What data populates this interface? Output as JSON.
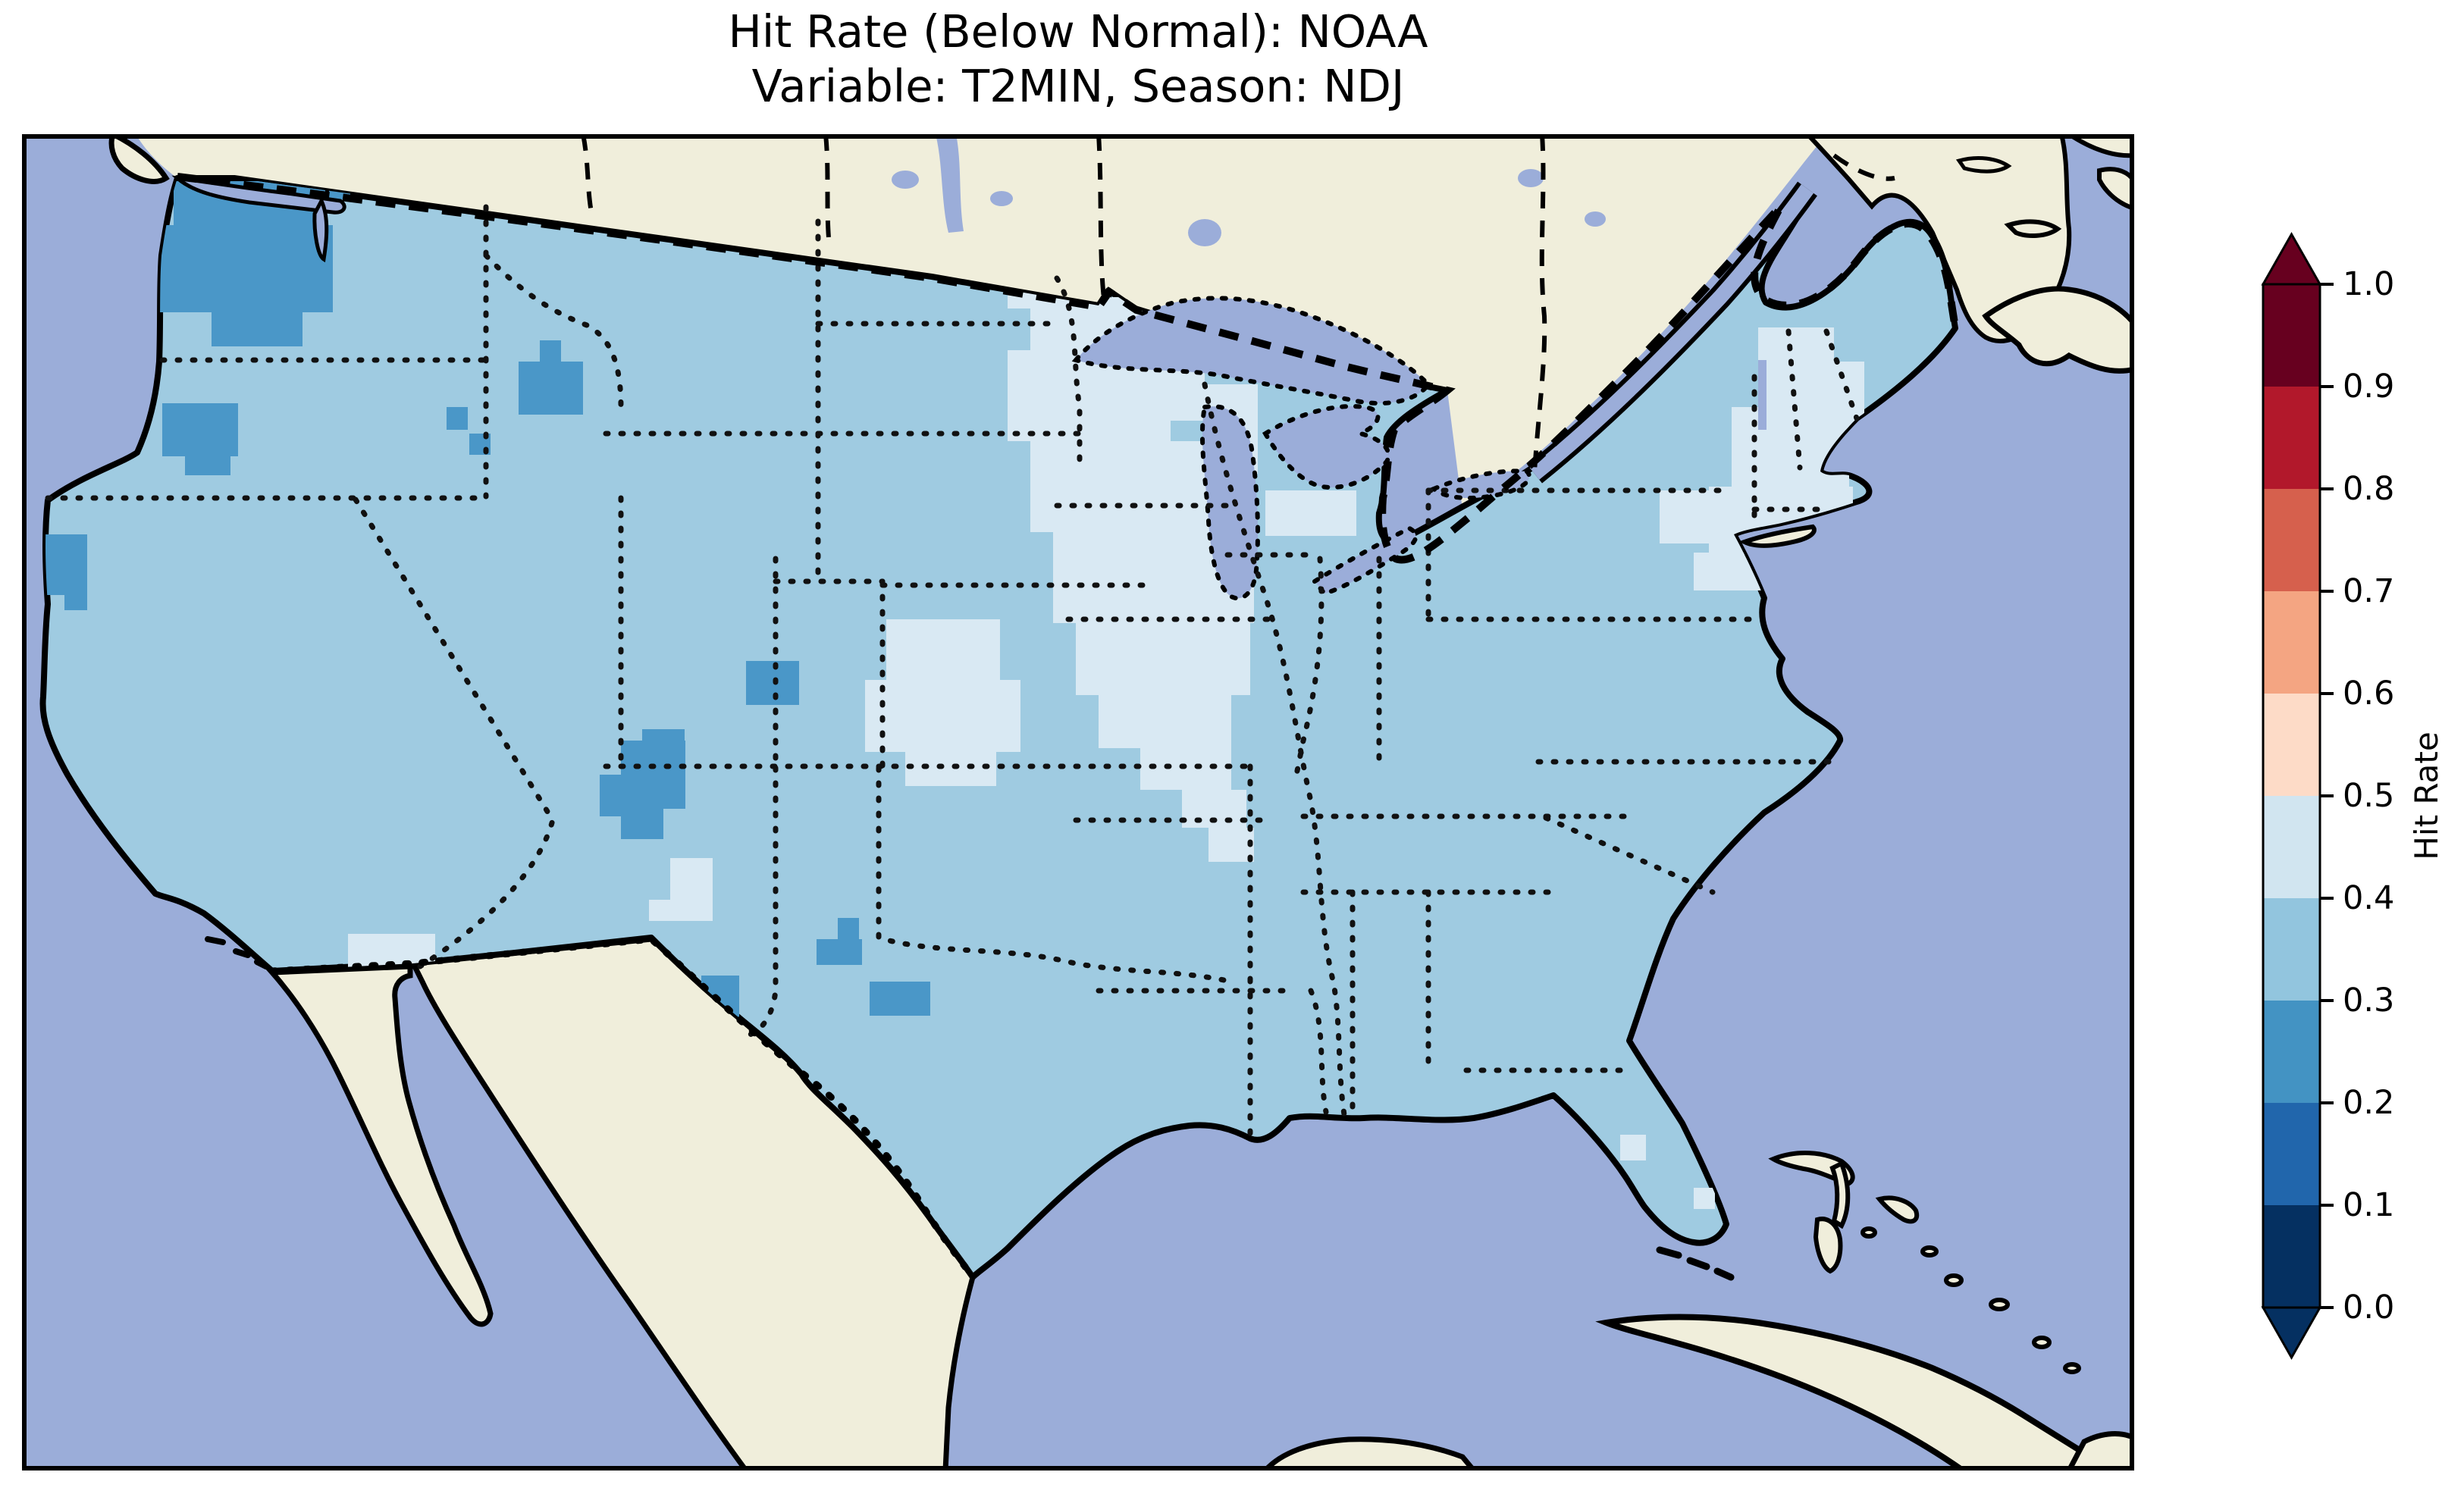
{
  "figure": {
    "title": "Hit Rate (Below Normal): NOAA",
    "subtitle": "Variable: T2MIN, Season: NDJ",
    "background_color": "#ffffff"
  },
  "chart_data": {
    "type": "heatmap",
    "title": "Hit Rate (Below Normal): NOAA",
    "subtitle": "Variable: T2MIN, Season: NDJ",
    "metric": "Hit Rate (Below Normal)",
    "dataset": "NOAA",
    "variable": "T2MIN",
    "season": "NDJ",
    "legend_position": "right",
    "colorbar": {
      "label": "Hit Rate",
      "orientation": "vertical",
      "extend": "both",
      "bin_size": 0.1,
      "ticks": [
        "0.0",
        "0.1",
        "0.2",
        "0.3",
        "0.4",
        "0.5",
        "0.6",
        "0.7",
        "0.8",
        "0.9",
        "1.0"
      ],
      "bins": [
        {
          "range": [
            0.0,
            0.1
          ],
          "color": "#053061"
        },
        {
          "range": [
            0.1,
            0.2
          ],
          "color": "#2166ac"
        },
        {
          "range": [
            0.2,
            0.3
          ],
          "color": "#4393c3"
        },
        {
          "range": [
            0.3,
            0.4
          ],
          "color": "#92c5de"
        },
        {
          "range": [
            0.4,
            0.5
          ],
          "color": "#d1e5f0"
        },
        {
          "range": [
            0.5,
            0.6
          ],
          "color": "#fddbc7"
        },
        {
          "range": [
            0.6,
            0.7
          ],
          "color": "#f4a582"
        },
        {
          "range": [
            0.7,
            0.8
          ],
          "color": "#d6604d"
        },
        {
          "range": [
            0.8,
            0.9
          ],
          "color": "#b2182b"
        },
        {
          "range": [
            0.9,
            1.0
          ],
          "color": "#67001f"
        }
      ]
    },
    "map": {
      "extent": "Contiguous United States with southern Canada, northern Mexico, Bahamas and Cuba",
      "ocean_color": "#9badd9",
      "lake_color": "#9badd9",
      "no_data_land_color": "#f0eedb",
      "base_value_bin": "0.3-0.4",
      "base_color": "#9fcbe1",
      "coastline_style": "solid black",
      "state_border_style": "dotted black",
      "country_border_style": "dashed black",
      "regions": [
        {
          "name": "Most of CONUS",
          "hit_rate_bin": "0.3-0.4"
        },
        {
          "name": "Upper Midwest (MN, IA, WI, IL, MO, MI)",
          "hit_rate_bin": "0.4-0.5"
        },
        {
          "name": "New England and upstate New York",
          "hit_rate_bin": "0.4-0.5"
        },
        {
          "name": "Western Washington / Cascades",
          "hit_rate_bin": "0.2-0.3"
        },
        {
          "name": "Central-northeast Oregon",
          "hit_rate_bin": "0.2-0.3"
        },
        {
          "name": "Northwest California coast",
          "hit_rate_bin": "0.2-0.3"
        },
        {
          "name": "Southwest Montana (scattered)",
          "hit_rate_bin": "0.2-0.3"
        },
        {
          "name": "South-central Colorado",
          "hit_rate_bin": "0.2-0.3"
        },
        {
          "name": "Northern New Mexico",
          "hit_rate_bin": "0.2-0.3"
        },
        {
          "name": "West and south Texas (scattered)",
          "hit_rate_bin": "0.2-0.3"
        },
        {
          "name": "Western Kansas / SE Colorado",
          "hit_rate_bin": "0.4-0.5"
        },
        {
          "name": "Central New Mexico (small)",
          "hit_rate_bin": "0.4-0.5"
        },
        {
          "name": "Southern Arizona (small)",
          "hit_rate_bin": "0.4-0.5"
        },
        {
          "name": "Florida Keys fringe (small)",
          "hit_rate_bin": "0.4-0.5"
        }
      ],
      "cells": [
        {
          "bin": "0.2-0.3",
          "color": "#4a97c8",
          "rects": [
            [
              200,
              62,
              200,
              60
            ],
            [
              180,
              120,
              230,
              115
            ],
            [
              250,
              230,
              120,
              50
            ],
            [
              310,
              60,
              90,
              40
            ],
            [
              405,
              58,
              28,
              28
            ],
            [
              185,
              355,
              100,
              70
            ],
            [
              215,
              420,
              60,
              30
            ],
            [
              655,
              300,
              85,
              70
            ],
            [
              683,
              272,
              28,
              28
            ],
            [
              560,
              360,
              28,
              30
            ],
            [
              590,
              395,
              28,
              28
            ],
            [
              28,
              528,
              58,
              80
            ],
            [
              56,
              600,
              30,
              28
            ],
            [
              955,
              695,
              70,
              58
            ],
            [
              790,
              800,
              85,
              90
            ],
            [
              762,
              845,
              28,
              55
            ],
            [
              818,
              785,
              56,
              28
            ],
            [
              790,
              890,
              56,
              40
            ],
            [
              1048,
              1062,
              60,
              34
            ],
            [
              1076,
              1034,
              28,
              28
            ],
            [
              896,
              1110,
              50,
              56
            ],
            [
              1118,
              1118,
              80,
              45
            ]
          ]
        },
        {
          "bin": "0.4-0.5",
          "color": "#d9e9f3",
          "rects": [
            [
              1330,
              215,
              150,
              70
            ],
            [
              1300,
              285,
              215,
              120
            ],
            [
              1330,
              405,
              240,
              120
            ],
            [
              1360,
              525,
              265,
              120
            ],
            [
              1390,
              645,
              230,
              95
            ],
            [
              1420,
              740,
              175,
              70
            ],
            [
              1475,
              810,
              120,
              55
            ],
            [
              1530,
              865,
              85,
              50
            ],
            [
              1565,
              915,
              60,
              45
            ],
            [
              1480,
              330,
              150,
              48
            ],
            [
              1450,
              300,
              110,
              30
            ],
            [
              1560,
              378,
              70,
              70
            ],
            [
              1640,
              470,
              120,
              60
            ],
            [
              1300,
              190,
              56,
              40
            ],
            [
              1140,
              640,
              150,
              80
            ],
            [
              1112,
              720,
              205,
              95
            ],
            [
              1165,
              815,
              120,
              45
            ],
            [
              855,
              955,
              56,
              56
            ],
            [
              827,
              1010,
              84,
              28
            ],
            [
              430,
              1055,
              115,
              56
            ],
            [
              458,
              1110,
              60,
              28
            ],
            [
              2290,
              255,
              100,
              110
            ],
            [
              2255,
              360,
              155,
              110
            ],
            [
              2225,
              465,
              190,
              90
            ],
            [
              2205,
              552,
              150,
              50
            ],
            [
              2350,
              300,
              80,
              90
            ],
            [
              2160,
              470,
              70,
              70
            ],
            [
              2085,
              1560,
              28,
              28
            ],
            [
              2140,
              1562,
              28,
              28
            ],
            [
              2195,
              1560,
              28,
              28
            ],
            [
              2205,
              1390,
              28,
              28
            ],
            [
              2108,
              1320,
              34,
              34
            ]
          ]
        }
      ]
    }
  }
}
